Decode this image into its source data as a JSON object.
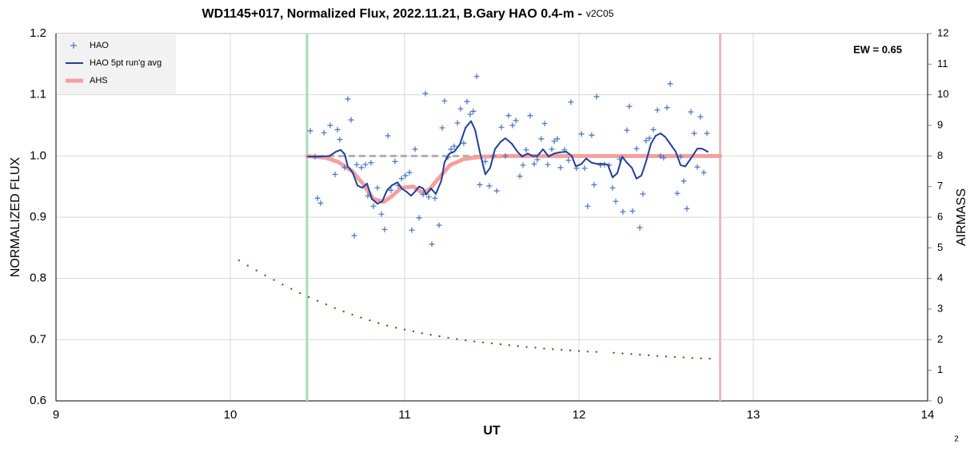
{
  "chart_data": {
    "type": "scatter",
    "title": "WD1145+017, Normalized Flux, 2022.11.21, B.Gary HAO 0.4-m -",
    "subtitle": "v2C05",
    "x_label": "UT",
    "y_label": "NORMALIZED FLUX",
    "y2_label": "AIRMASS",
    "annotation": "EW = 0.65",
    "page_number": "2",
    "xlim": [
      9,
      14
    ],
    "xticks": [
      9,
      10,
      11,
      12,
      13,
      14
    ],
    "ylim": [
      0.6,
      1.2
    ],
    "yticks": [
      {
        "value": 0.6,
        "label": "0.6"
      },
      0.7,
      0.8,
      0.9,
      {
        "value": 1,
        "label": "1.0"
      },
      1.1,
      1.2
    ],
    "y2lim": [
      0,
      12
    ],
    "y2ticks": [
      0,
      1,
      2,
      3,
      4,
      5,
      6,
      7,
      8,
      9,
      10,
      11,
      12
    ],
    "grid": true,
    "legend": "upper left",
    "vlines": [
      {
        "x": 10.44,
        "color": "#a9dcb9"
      },
      {
        "x": 12.81,
        "color": "#e6bcbc"
      }
    ],
    "reference_line": {
      "y": 1,
      "x": [
        10.44,
        12.81
      ],
      "color": "#b0b0b0"
    },
    "series": [
      {
        "name": "HAO",
        "type": "scatter",
        "marker": "plus",
        "color": "#4472c4",
        "x": [
          10.459,
          10.486,
          10.5,
          10.518,
          10.537,
          10.573,
          10.601,
          10.615,
          10.628,
          10.656,
          10.674,
          10.693,
          10.711,
          10.725,
          10.752,
          10.775,
          10.789,
          10.807,
          10.821,
          10.844,
          10.867,
          10.885,
          10.904,
          10.922,
          10.945,
          10.963,
          10.982,
          11.005,
          11.028,
          11.041,
          11.06,
          11.083,
          11.106,
          11.119,
          11.138,
          11.156,
          11.174,
          11.197,
          11.216,
          11.229,
          11.248,
          11.266,
          11.284,
          11.303,
          11.321,
          11.339,
          11.358,
          11.376,
          11.394,
          11.413,
          11.431,
          11.463,
          11.486,
          11.509,
          11.528,
          11.555,
          11.578,
          11.596,
          11.619,
          11.638,
          11.661,
          11.679,
          11.697,
          11.72,
          11.743,
          11.761,
          11.784,
          11.803,
          11.821,
          11.844,
          11.858,
          11.876,
          11.894,
          11.917,
          11.94,
          11.954,
          11.986,
          12.014,
          12.032,
          12.05,
          12.073,
          12.087,
          12.101,
          12.124,
          12.147,
          12.174,
          12.193,
          12.211,
          12.234,
          12.252,
          12.275,
          12.289,
          12.307,
          12.33,
          12.349,
          12.367,
          12.385,
          12.404,
          12.427,
          12.45,
          12.468,
          12.486,
          12.505,
          12.523,
          12.564,
          12.583,
          12.601,
          12.619,
          12.642,
          12.661,
          12.679,
          12.697,
          12.716,
          12.734
        ],
        "values": [
          1.041,
          0.999,
          0.931,
          0.923,
          1.038,
          1.05,
          0.97,
          1.043,
          1.027,
          0.981,
          1.093,
          1.059,
          0.87,
          0.986,
          0.981,
          0.986,
          0.935,
          0.989,
          0.918,
          0.948,
          0.905,
          0.88,
          1.033,
          0.944,
          0.991,
          0.952,
          0.963,
          0.968,
          0.973,
          0.879,
          1.011,
          0.899,
          0.937,
          1.102,
          0.933,
          0.856,
          0.931,
          0.887,
          1.046,
          1.09,
          0.998,
          1.011,
          1.016,
          1.054,
          1.077,
          1.021,
          1.089,
          1.068,
          1.073,
          1.13,
          0.953,
          0.991,
          0.951,
          1.0,
          0.943,
          1.047,
          1.0,
          1.066,
          1.05,
          1.058,
          0.967,
          0.985,
          1.01,
          1.066,
          0.987,
          0.994,
          1.028,
          1.053,
          0.986,
          1.011,
          1.024,
          1.028,
          0.981,
          1.01,
          0.993,
          1.088,
          0.98,
          1.036,
          0.98,
          0.918,
          1.034,
          0.953,
          1.097,
          0.985,
          0.986,
          0.985,
          0.948,
          0.926,
          0.995,
          0.909,
          1.042,
          1.081,
          0.91,
          1.012,
          0.883,
          0.938,
          1.025,
          1.029,
          1.043,
          1.075,
          1.0,
          0.997,
          1.079,
          1.118,
          0.939,
          0.999,
          0.959,
          0.914,
          1.072,
          1.037,
          0.982,
          1.064,
          0.973,
          1.037
        ]
      },
      {
        "name": "HAO 5pt run'g avg",
        "type": "line",
        "color": "#1f3f99",
        "width": 2,
        "x": [
          10.445,
          10.505,
          10.569,
          10.606,
          10.633,
          10.656,
          10.674,
          10.702,
          10.729,
          10.757,
          10.784,
          10.812,
          10.844,
          10.872,
          10.899,
          10.927,
          10.959,
          10.982,
          11.009,
          11.037,
          11.06,
          11.083,
          11.106,
          11.124,
          11.151,
          11.179,
          11.211,
          11.229,
          11.257,
          11.284,
          11.317,
          11.349,
          11.381,
          11.404,
          11.431,
          11.463,
          11.491,
          11.518,
          11.55,
          11.578,
          11.615,
          11.647,
          11.674,
          11.706,
          11.734,
          11.761,
          11.794,
          11.826,
          11.858,
          11.89,
          11.927,
          11.959,
          11.982,
          12.014,
          12.041,
          12.073,
          12.106,
          12.138,
          12.165,
          12.193,
          12.22,
          12.248,
          12.275,
          12.303,
          12.33,
          12.358,
          12.385,
          12.413,
          12.44,
          12.468,
          12.495,
          12.523,
          12.555,
          12.583,
          12.61,
          12.642,
          12.679,
          12.706,
          12.739
        ],
        "values": [
          0.999,
          0.999,
          1.0,
          1.007,
          1.01,
          1.003,
          0.983,
          0.973,
          0.952,
          0.948,
          0.955,
          0.93,
          0.922,
          0.926,
          0.944,
          0.952,
          0.957,
          0.947,
          0.942,
          0.935,
          0.942,
          0.95,
          0.947,
          0.937,
          0.947,
          0.938,
          0.96,
          0.99,
          1.004,
          1.007,
          1.019,
          1.046,
          1.057,
          1.043,
          1.007,
          0.97,
          0.981,
          1.011,
          1.023,
          1.029,
          1.02,
          1.007,
          0.999,
          1.004,
          1.0,
          1.0,
          1.011,
          0.999,
          1.004,
          1.006,
          1.007,
          1.0,
          0.983,
          0.987,
          0.996,
          0.989,
          0.987,
          0.987,
          0.986,
          0.965,
          0.972,
          0.999,
          0.989,
          0.981,
          0.963,
          0.968,
          0.991,
          1.02,
          1.033,
          1.037,
          1.031,
          1.02,
          1.007,
          0.985,
          0.983,
          0.996,
          1.012,
          1.012,
          1.007
        ]
      },
      {
        "name": "AHS",
        "type": "line",
        "color": "#f4a0a0",
        "width": 5,
        "x": [
          10.44,
          10.55,
          10.62,
          10.7,
          10.76,
          10.82,
          10.88,
          10.93,
          10.98,
          11.05,
          11.1,
          11.14,
          11.2,
          11.26,
          11.34,
          11.45,
          11.6,
          12.81
        ],
        "values": [
          1.0,
          0.997,
          0.99,
          0.975,
          0.955,
          0.93,
          0.925,
          0.935,
          0.948,
          0.95,
          0.94,
          0.945,
          0.965,
          0.985,
          0.995,
          0.999,
          1.0,
          1.0
        ]
      },
      {
        "type": "scatter",
        "marker": "dot",
        "axis": "y2",
        "color": "#8b4a1a",
        "x": [
          10.05,
          10.1,
          10.15,
          10.2,
          10.25,
          10.3,
          10.35,
          10.4,
          10.45,
          10.5,
          10.55,
          10.6,
          10.65,
          10.7,
          10.75,
          10.8,
          10.85,
          10.9,
          10.95,
          11.0,
          11.05,
          11.1,
          11.15,
          11.2,
          11.25,
          11.3,
          11.35,
          11.4,
          11.45,
          11.5,
          11.55,
          11.6,
          11.65,
          11.7,
          11.75,
          11.8,
          11.85,
          11.9,
          11.95,
          12.0,
          12.05,
          12.1,
          12.2,
          12.25,
          12.3,
          12.35,
          12.4,
          12.45,
          12.5,
          12.55,
          12.6,
          12.65,
          12.7,
          12.75
        ],
        "values": [
          4.59,
          4.42,
          4.26,
          4.1,
          3.95,
          3.8,
          3.66,
          3.52,
          3.39,
          3.27,
          3.15,
          3.03,
          2.92,
          2.82,
          2.72,
          2.63,
          2.54,
          2.46,
          2.39,
          2.33,
          2.27,
          2.21,
          2.16,
          2.11,
          2.06,
          2.02,
          1.98,
          1.94,
          1.91,
          1.88,
          1.85,
          1.82,
          1.79,
          1.76,
          1.74,
          1.71,
          1.69,
          1.67,
          1.65,
          1.63,
          1.61,
          1.6,
          1.57,
          1.55,
          1.53,
          1.51,
          1.49,
          1.47,
          1.45,
          1.43,
          1.42,
          1.4,
          1.39,
          1.38
        ]
      }
    ]
  }
}
